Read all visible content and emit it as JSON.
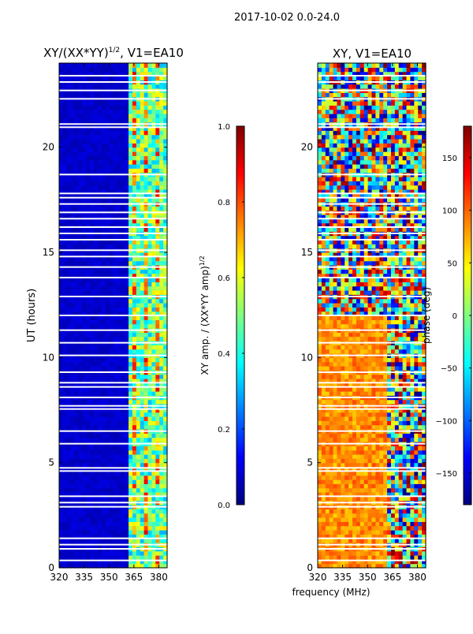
{
  "suptitle": "2017-10-02 0.0-24.0",
  "xlabel_shared": "frequency (MHz)",
  "colors": {
    "jet": [
      "#00007f",
      "#0000ff",
      "#007fff",
      "#00ffff",
      "#7fff7f",
      "#ffff00",
      "#ff7f00",
      "#ff0000",
      "#7f0000"
    ],
    "gap": "#ffffff"
  },
  "chart_data": [
    {
      "type": "heatmap",
      "title_main": "XY/(XX*YY)",
      "title_sup": "1/2",
      "title_tail": ", V1=EA10",
      "xlabel": "",
      "ylabel": "UT (hours)",
      "xlim": [
        320,
        385
      ],
      "ylim": [
        0,
        24
      ],
      "xticks": [
        320,
        335,
        350,
        365,
        380
      ],
      "yticks": [
        0,
        5,
        10,
        15,
        20
      ],
      "colorbar": {
        "label_main": "XY amp. / (XX*YY amp)",
        "label_sup": "1/2",
        "range": [
          0.0,
          1.0
        ],
        "ticks": [
          "0.0",
          "0.2",
          "0.4",
          "0.6",
          "0.8",
          "1.0"
        ],
        "tick_values": [
          0.0,
          0.2,
          0.4,
          0.6,
          0.8,
          1.0
        ]
      },
      "description": {
        "background_value": 0.05,
        "active_band_MHz": [
          361,
          382
        ],
        "active_value_range": [
          0.3,
          0.9
        ]
      }
    },
    {
      "type": "heatmap",
      "title": "XY, V1=EA10",
      "xlabel": "frequency (MHz)",
      "ylabel": "",
      "xlim": [
        320,
        385
      ],
      "ylim": [
        0,
        24
      ],
      "xticks": [
        320,
        335,
        350,
        365,
        380
      ],
      "yticks": [
        0,
        5,
        10,
        15,
        20
      ],
      "colorbar": {
        "label": "phase (deg)",
        "range": [
          -180,
          180
        ],
        "ticks": [
          "−150",
          "−100",
          "−50",
          "0",
          "50",
          "100",
          "150"
        ],
        "tick_values": [
          -150,
          -100,
          -50,
          0,
          50,
          100,
          150
        ]
      },
      "description": {
        "dominant_phase_deg_0_12h": [
          60,
          110
        ],
        "mixed_phase_12_24h": [
          -180,
          180
        ]
      }
    }
  ],
  "gap_rows_UT_hours": [
    0.35,
    0.9,
    1.1,
    1.4,
    2.9,
    3.1,
    3.4,
    4.6,
    4.75,
    5.9,
    6.5,
    7.55,
    7.7,
    8.1,
    8.6,
    8.8,
    9.3,
    10.1,
    10.7,
    11.3,
    12.0,
    12.9,
    13.8,
    14.3,
    14.8,
    15.1,
    15.6,
    15.9,
    16.2,
    16.6,
    16.9,
    17.3,
    17.6,
    17.8,
    18.7,
    20.95,
    21.1,
    22.3,
    22.7,
    23.1,
    23.4
  ]
}
